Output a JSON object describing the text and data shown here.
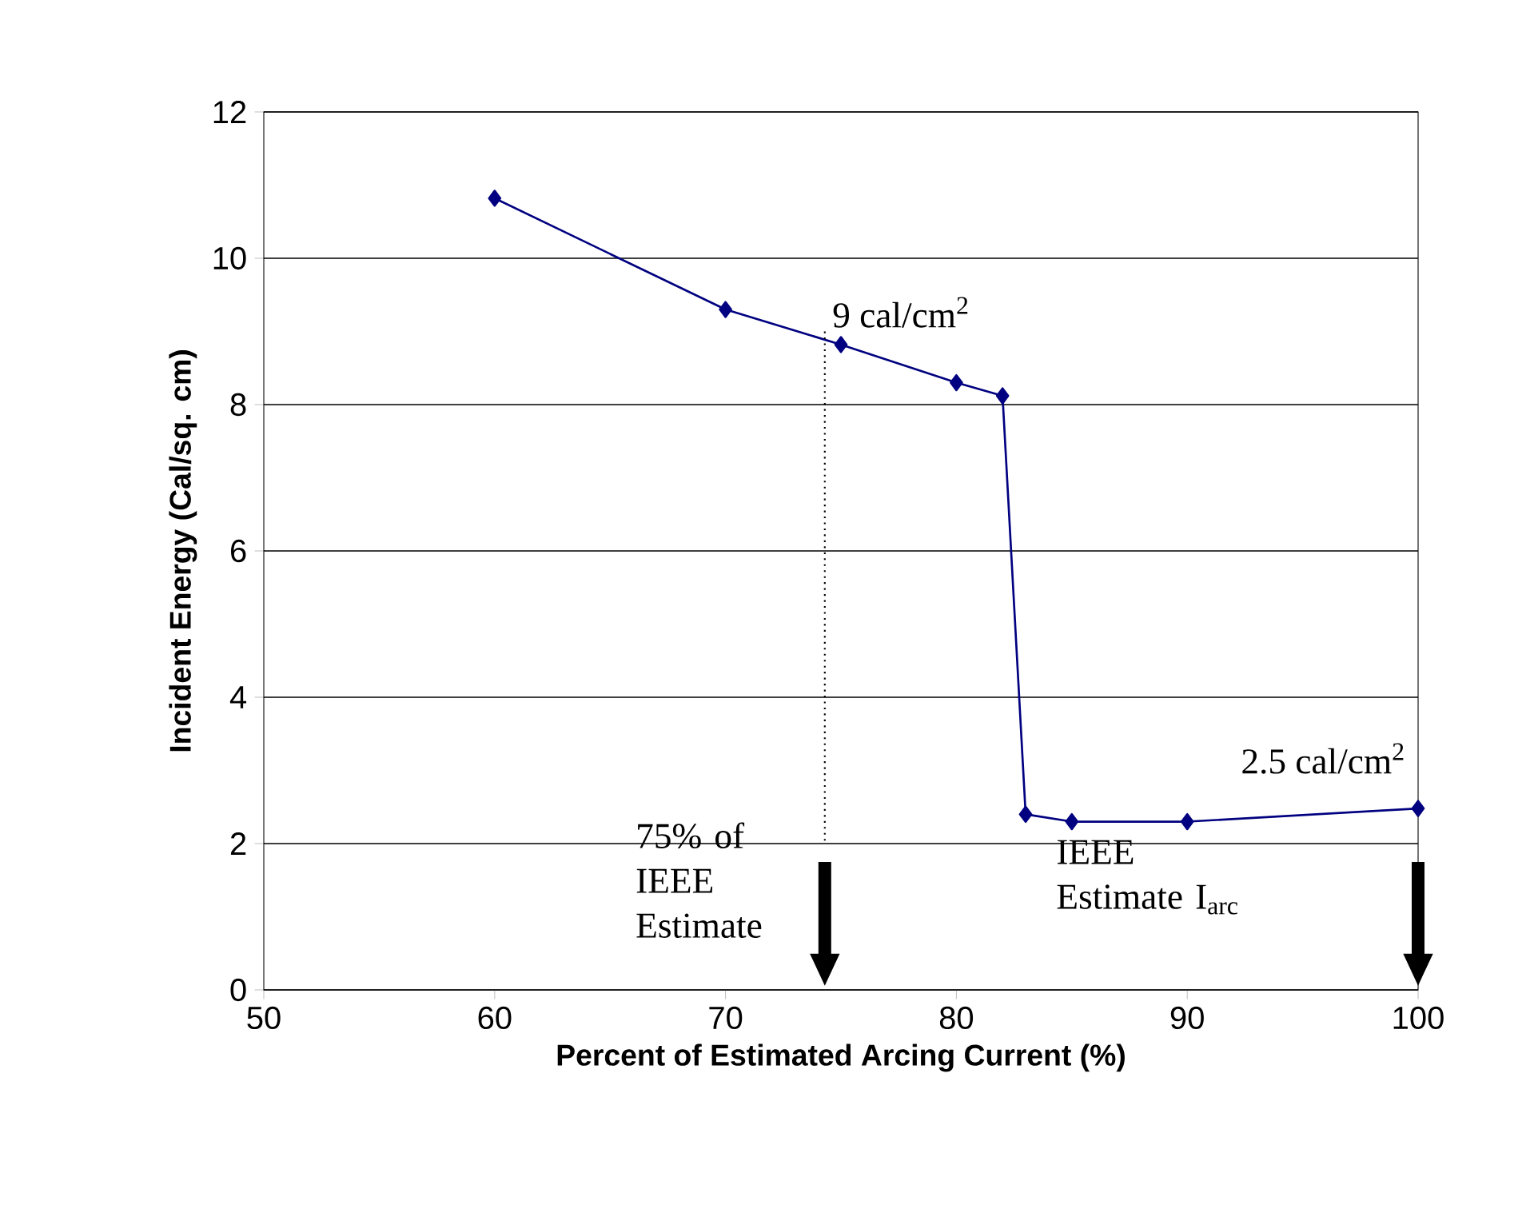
{
  "chart_data": {
    "type": "line",
    "xlabel": "Percent of Estimated Arcing Current (%)",
    "ylabel": "Incident Energy (Cal/sq. cm)",
    "x": [
      60,
      70,
      75,
      80,
      82,
      83,
      85,
      90,
      100
    ],
    "series": [
      {
        "color": "#000080",
        "values": [
          10.82,
          9.3,
          8.82,
          8.3,
          8.12,
          2.4,
          2.3,
          2.3,
          2.48
        ]
      }
    ],
    "xlim": [
      50,
      100
    ],
    "xticks": [
      50,
      60,
      70,
      80,
      90,
      100
    ],
    "ylim": [
      0,
      12
    ],
    "yticks": [
      0,
      2,
      4,
      6,
      8,
      10,
      12
    ],
    "grid": "y",
    "marker": "diamond",
    "line_style": "solid",
    "ref_lines": [
      {
        "axis": "x",
        "value": 74.3,
        "line_style": "dotted",
        "color": "#000000"
      }
    ],
    "annotations": [
      {
        "text": "9 cal/cm$^{2}$",
        "x": 74.3,
        "y": 9
      },
      {
        "text": "2.5 cal/cm$^{2}$",
        "x": 100,
        "y": 2.5
      },
      "75% of IEEE Estimate",
      "IEEE Estimate I$_{arc}$"
    ]
  }
}
